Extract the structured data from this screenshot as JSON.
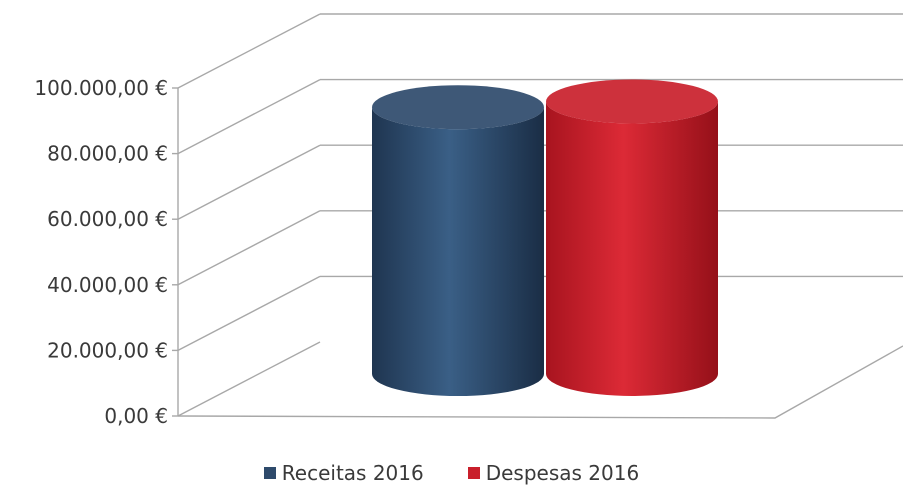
{
  "chart_data": {
    "type": "bar",
    "style": "3d-cylinder",
    "categories": [
      ""
    ],
    "series": [
      {
        "name": "Receitas 2016",
        "values": [
          93500
        ],
        "color": "#2e4a6b"
      },
      {
        "name": "Despesas 2016",
        "values": [
          95500
        ],
        "color": "#c91f2b"
      }
    ],
    "ylim": [
      0,
      100000
    ],
    "y_ticks": [
      0,
      20000,
      40000,
      60000,
      80000,
      100000
    ],
    "y_tick_labels": [
      "0,00 €",
      "20.000,00 €",
      "40.000,00 €",
      "60.000,00 €",
      "80.000,00 €",
      "100.000,00 €"
    ],
    "grid": true,
    "legend_position": "bottom",
    "title": "",
    "xlabel": "",
    "ylabel": ""
  }
}
